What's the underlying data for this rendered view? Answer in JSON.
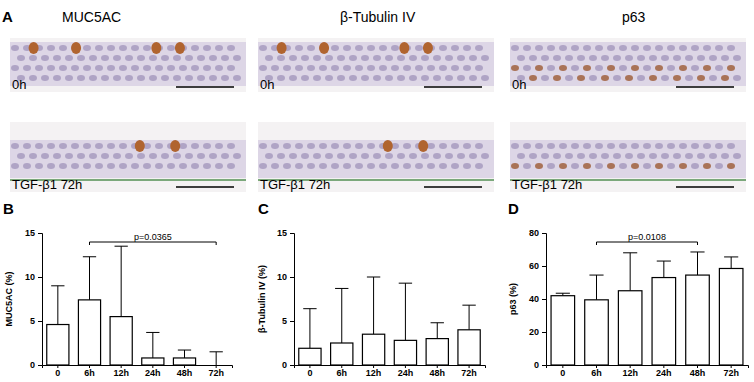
{
  "panel_a": {
    "label": "A",
    "columns": [
      {
        "title": "MUC5AC",
        "rows": [
          "0h",
          "TGF-β1 72h"
        ]
      },
      {
        "title": "β-Tubulin IV",
        "rows": [
          "0h",
          "TGF-β1 72h"
        ]
      },
      {
        "title": "p63",
        "rows": [
          "0h",
          "TGF-β1 72h"
        ]
      }
    ]
  },
  "chart_data": [
    {
      "type": "bar",
      "title": "B",
      "y_label": "MUC5AC (%)",
      "categories": [
        "0",
        "6h",
        "12h",
        "24h",
        "48h",
        "72h"
      ],
      "values": [
        4.6,
        7.4,
        5.5,
        0.8,
        0.8,
        0
      ],
      "errors": [
        4.4,
        4.9,
        8.0,
        2.9,
        0.9,
        1.5
      ],
      "color": "#ffffff",
      "ylim": [
        0,
        15
      ],
      "yticks": [
        0,
        5,
        10,
        15
      ],
      "annotations": [
        {
          "text": "p=0.0365",
          "from": "6h",
          "to": "72h"
        }
      ]
    },
    {
      "type": "bar",
      "title": "C",
      "y_label": "β-Tubulin IV (%)",
      "categories": [
        "0",
        "6h",
        "12h",
        "24h",
        "48h",
        "72h"
      ],
      "values": [
        1.9,
        2.5,
        3.5,
        2.8,
        3.0,
        4.0
      ],
      "errors": [
        4.5,
        6.2,
        6.5,
        6.5,
        1.8,
        2.8
      ],
      "color": "#ffffff",
      "ylim": [
        0,
        15
      ],
      "yticks": [
        0,
        5,
        10,
        15
      ]
    },
    {
      "type": "bar",
      "title": "D",
      "y_label": "p63 (%)",
      "categories": [
        "0",
        "6h",
        "12h",
        "24h",
        "48h",
        "72h"
      ],
      "values": [
        42,
        39.5,
        45,
        53,
        54.5,
        58.5
      ],
      "errors": [
        1.5,
        15,
        23,
        10,
        14,
        7
      ],
      "color": "#ffffff",
      "ylim": [
        0,
        80
      ],
      "yticks": [
        0,
        20,
        40,
        60,
        80
      ],
      "annotations": [
        {
          "text": "p=0.0108",
          "from": "6h",
          "to": "48h"
        }
      ]
    }
  ]
}
